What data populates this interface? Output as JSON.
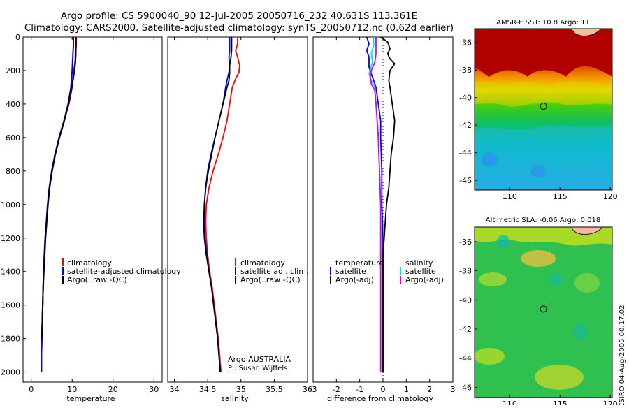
{
  "title": {
    "line1": "Argo profile: CS 5900040_90 12-Jul-2005 20050716_232 40.631S 113.361E",
    "line2": "Climatology: CARS2000. Satellite-adjusted climatology: synTS_20050712.nc (0.62d earlier)"
  },
  "colors": {
    "climatology": "#ff0000",
    "satellite": "#0000ff",
    "argo": "#000000",
    "salinity_satellite": "#00e5e5",
    "salinity_argo": "#e000e0"
  },
  "chart_data": [
    {
      "id": "temperature",
      "type": "line",
      "xlabel": "temperature",
      "ylabel": "",
      "xlim": [
        -2,
        32
      ],
      "ylim": [
        2060,
        0
      ],
      "xticks": [
        0,
        10,
        20,
        30
      ],
      "yticks": [
        0,
        200,
        400,
        600,
        800,
        1000,
        1200,
        1400,
        1600,
        1800,
        2000
      ],
      "legend": [
        "climatology",
        "satellite-adjusted climatology",
        "Argo(..raw -QC)"
      ],
      "series": [
        {
          "name": "climatology",
          "color": "#ff0000",
          "points": [
            [
              11.0,
              0
            ],
            [
              11.0,
              50
            ],
            [
              10.8,
              100
            ],
            [
              10.7,
              150
            ],
            [
              10.4,
              200
            ],
            [
              10.0,
              300
            ],
            [
              9.2,
              400
            ],
            [
              8.0,
              500
            ],
            [
              6.8,
              600
            ],
            [
              5.8,
              700
            ],
            [
              5.0,
              800
            ],
            [
              4.4,
              900
            ],
            [
              4.0,
              1000
            ],
            [
              3.7,
              1100
            ],
            [
              3.4,
              1200
            ],
            [
              3.2,
              1300
            ],
            [
              3.0,
              1400
            ],
            [
              2.9,
              1500
            ],
            [
              2.8,
              1600
            ],
            [
              2.7,
              1700
            ],
            [
              2.6,
              1800
            ],
            [
              2.5,
              1900
            ],
            [
              2.5,
              2000
            ]
          ]
        },
        {
          "name": "satellite",
          "color": "#0000ff",
          "points": [
            [
              10.3,
              0
            ],
            [
              10.3,
              50
            ],
            [
              10.2,
              100
            ],
            [
              10.1,
              150
            ],
            [
              10.0,
              200
            ],
            [
              9.7,
              300
            ],
            [
              9.0,
              400
            ],
            [
              8.0,
              500
            ],
            [
              6.8,
              600
            ],
            [
              5.8,
              700
            ],
            [
              5.0,
              800
            ],
            [
              4.4,
              900
            ],
            [
              4.0,
              1000
            ],
            [
              3.7,
              1100
            ],
            [
              3.4,
              1200
            ],
            [
              3.2,
              1300
            ],
            [
              3.0,
              1400
            ],
            [
              2.9,
              1500
            ],
            [
              2.8,
              1600
            ],
            [
              2.7,
              1700
            ],
            [
              2.6,
              1800
            ],
            [
              2.5,
              1900
            ],
            [
              2.5,
              2000
            ]
          ]
        },
        {
          "name": "argo",
          "color": "#000000",
          "points": [
            [
              10.9,
              0
            ],
            [
              10.9,
              50
            ],
            [
              10.9,
              100
            ],
            [
              10.8,
              150
            ],
            [
              10.6,
              200
            ],
            [
              9.9,
              300
            ],
            [
              9.1,
              400
            ],
            [
              8.1,
              500
            ],
            [
              6.9,
              600
            ],
            [
              5.9,
              700
            ],
            [
              5.1,
              800
            ],
            [
              4.5,
              900
            ],
            [
              4.1,
              1000
            ],
            [
              3.8,
              1100
            ],
            [
              3.5,
              1200
            ],
            [
              3.3,
              1300
            ],
            [
              3.1,
              1400
            ],
            [
              2.9,
              1500
            ],
            [
              2.8,
              1600
            ],
            [
              2.7,
              1700
            ],
            [
              2.6,
              1800
            ]
          ]
        }
      ]
    },
    {
      "id": "salinity",
      "type": "line",
      "xlabel": "salinity",
      "xlim": [
        33.9,
        36.0
      ],
      "ylim": [
        2060,
        0
      ],
      "xticks": [
        34,
        34.5,
        35,
        35.5,
        36
      ],
      "legend": [
        "climatology",
        "satellite adj. clim.",
        "Argo(..raw -QC)"
      ],
      "annotation": [
        "Argo AUSTRALIA",
        "PI: Susan Wijffels"
      ],
      "series": [
        {
          "name": "climatology",
          "color": "#ff0000",
          "points": [
            [
              34.95,
              0
            ],
            [
              34.95,
              40
            ],
            [
              34.92,
              80
            ],
            [
              34.95,
              120
            ],
            [
              34.98,
              170
            ],
            [
              34.97,
              210
            ],
            [
              34.92,
              250
            ],
            [
              34.87,
              300
            ],
            [
              34.83,
              400
            ],
            [
              34.79,
              500
            ],
            [
              34.73,
              600
            ],
            [
              34.66,
              700
            ],
            [
              34.58,
              800
            ],
            [
              34.52,
              900
            ],
            [
              34.48,
              1000
            ],
            [
              34.47,
              1100
            ],
            [
              34.48,
              1200
            ],
            [
              34.5,
              1300
            ],
            [
              34.53,
              1400
            ],
            [
              34.57,
              1500
            ],
            [
              34.6,
              1600
            ],
            [
              34.63,
              1700
            ],
            [
              34.66,
              1800
            ],
            [
              34.68,
              1900
            ],
            [
              34.7,
              2000
            ]
          ]
        },
        {
          "name": "satellite",
          "color": "#0000ff",
          "points": [
            [
              34.83,
              0
            ],
            [
              34.83,
              40
            ],
            [
              34.83,
              80
            ],
            [
              34.82,
              120
            ],
            [
              34.83,
              170
            ],
            [
              34.82,
              210
            ],
            [
              34.79,
              260
            ],
            [
              34.77,
              300
            ],
            [
              34.73,
              400
            ],
            [
              34.67,
              500
            ],
            [
              34.61,
              600
            ],
            [
              34.55,
              700
            ],
            [
              34.5,
              800
            ],
            [
              34.47,
              900
            ],
            [
              34.45,
              1000
            ],
            [
              34.45,
              1100
            ],
            [
              34.46,
              1200
            ],
            [
              34.49,
              1300
            ],
            [
              34.52,
              1400
            ],
            [
              34.56,
              1500
            ],
            [
              34.59,
              1600
            ],
            [
              34.62,
              1700
            ],
            [
              34.65,
              1800
            ],
            [
              34.67,
              1900
            ],
            [
              34.69,
              2000
            ]
          ]
        },
        {
          "name": "argo",
          "color": "#000000",
          "points": [
            [
              34.86,
              0
            ],
            [
              34.86,
              40
            ],
            [
              34.86,
              80
            ],
            [
              34.85,
              120
            ],
            [
              34.83,
              170
            ],
            [
              34.83,
              210
            ],
            [
              34.82,
              260
            ],
            [
              34.79,
              300
            ],
            [
              34.73,
              400
            ],
            [
              34.67,
              500
            ],
            [
              34.61,
              600
            ],
            [
              34.56,
              700
            ],
            [
              34.51,
              800
            ],
            [
              34.47,
              900
            ],
            [
              34.45,
              1000
            ],
            [
              34.44,
              1100
            ],
            [
              34.45,
              1200
            ],
            [
              34.48,
              1300
            ],
            [
              34.52,
              1400
            ],
            [
              34.56,
              1500
            ],
            [
              34.59,
              1600
            ],
            [
              34.62,
              1700
            ],
            [
              34.65,
              1800
            ],
            [
              34.67,
              1900
            ],
            [
              34.69,
              2000
            ]
          ]
        }
      ]
    },
    {
      "id": "difference",
      "type": "line",
      "xlabel": "difference from climatology",
      "xlim": [
        -3,
        3
      ],
      "ylim": [
        2060,
        0
      ],
      "xticks": [
        -3,
        -2,
        -1,
        0,
        1,
        2,
        3
      ],
      "legend_left_header": "temperature",
      "legend_left": [
        "satellite",
        "Argo(-adj)"
      ],
      "legend_right_header": "salinity",
      "legend_right": [
        "satellite",
        "Argo(-adj)"
      ],
      "series": [
        {
          "name": "temperature satellite",
          "color": "#0000ff",
          "points": [
            [
              -0.7,
              0
            ],
            [
              -0.6,
              40
            ],
            [
              -0.7,
              80
            ],
            [
              -0.6,
              120
            ],
            [
              -0.6,
              180
            ],
            [
              -0.3,
              300
            ],
            [
              -0.2,
              400
            ],
            [
              -0.1,
              500
            ],
            [
              -0.1,
              600
            ],
            [
              -0.05,
              800
            ],
            [
              -0.05,
              1000
            ],
            [
              0,
              1200
            ],
            [
              0,
              1400
            ],
            [
              0,
              1600
            ],
            [
              0,
              1800
            ],
            [
              0,
              2000
            ]
          ]
        },
        {
          "name": "temperature argo",
          "color": "#000000",
          "points": [
            [
              -0.1,
              0
            ],
            [
              0.2,
              30
            ],
            [
              0.3,
              70
            ],
            [
              0.2,
              100
            ],
            [
              0.3,
              130
            ],
            [
              0.5,
              160
            ],
            [
              0.3,
              200
            ],
            [
              0.25,
              260
            ],
            [
              0.3,
              300
            ],
            [
              0.4,
              400
            ],
            [
              0.5,
              500
            ],
            [
              0.45,
              600
            ],
            [
              0.35,
              700
            ],
            [
              0.3,
              800
            ],
            [
              0.25,
              900
            ],
            [
              0.15,
              1000
            ],
            [
              0.1,
              1100
            ],
            [
              0.05,
              1200
            ],
            [
              0,
              1300
            ],
            [
              0,
              1400
            ],
            [
              0,
              1500
            ],
            [
              0,
              1600
            ],
            [
              0,
              1700
            ],
            [
              0,
              1800
            ],
            [
              0,
              1900
            ],
            [
              0,
              2000
            ]
          ]
        },
        {
          "name": "salinity satellite",
          "color": "#00e5e5",
          "points": [
            [
              -0.4,
              0
            ],
            [
              -0.4,
              50
            ],
            [
              -0.5,
              100
            ],
            [
              -0.45,
              150
            ],
            [
              -0.6,
              220
            ],
            [
              -0.5,
              260
            ],
            [
              -0.35,
              300
            ],
            [
              -0.3,
              400
            ],
            [
              -0.25,
              500
            ],
            [
              -0.2,
              600
            ],
            [
              -0.15,
              800
            ],
            [
              -0.1,
              1000
            ],
            [
              -0.1,
              1200
            ],
            [
              -0.1,
              1400
            ],
            [
              -0.1,
              1600
            ],
            [
              -0.1,
              1800
            ],
            [
              -0.1,
              2000
            ]
          ]
        },
        {
          "name": "salinity argo",
          "color": "#e000e0",
          "points": [
            [
              -0.3,
              0
            ],
            [
              -0.3,
              50
            ],
            [
              -0.3,
              100
            ],
            [
              -0.35,
              150
            ],
            [
              -0.5,
              200
            ],
            [
              -0.55,
              240
            ],
            [
              -0.5,
              280
            ],
            [
              -0.35,
              320
            ],
            [
              -0.3,
              400
            ],
            [
              -0.25,
              500
            ],
            [
              -0.2,
              600
            ],
            [
              -0.15,
              800
            ],
            [
              -0.1,
              1000
            ],
            [
              -0.1,
              1200
            ],
            [
              -0.1,
              1400
            ],
            [
              -0.1,
              1600
            ],
            [
              -0.1,
              1800
            ],
            [
              -0.1,
              2000
            ]
          ]
        }
      ]
    },
    {
      "id": "sst-map",
      "type": "heatmap",
      "title": "AMSR-E SST: 10.8 Argo: 11",
      "xlim": [
        106.5,
        120.2
      ],
      "ylim": [
        -46.7,
        -35
      ],
      "xticks": [
        110,
        115,
        120
      ],
      "yticks": [
        -36,
        -38,
        -40,
        -42,
        -44,
        -46
      ],
      "marker": {
        "lon": 113.361,
        "lat": -40.631
      }
    },
    {
      "id": "sla-map",
      "type": "heatmap",
      "title": "Altimetric SLA: -0.06 Argo: 0.018",
      "xlim": [
        106.5,
        120.2
      ],
      "ylim": [
        -46.7,
        -35
      ],
      "xticks": [
        110,
        115,
        120
      ],
      "yticks": [
        -36,
        -38,
        -40,
        -42,
        -44,
        -46
      ],
      "marker": {
        "lon": 113.361,
        "lat": -40.631
      }
    }
  ],
  "credit": "CSIRO 04-Aug-2005 00:17:02"
}
